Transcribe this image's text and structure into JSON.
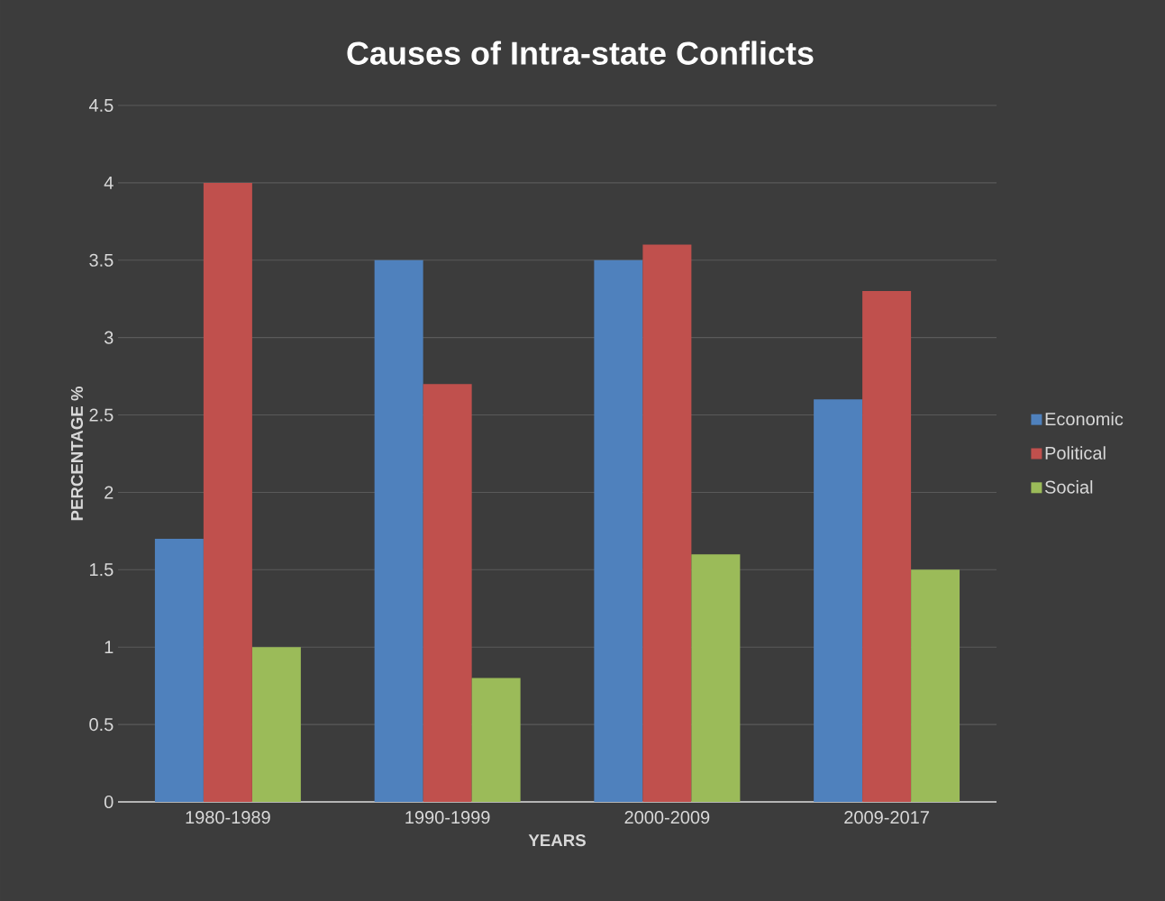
{
  "chart_data": {
    "type": "bar",
    "title": "Causes of Intra-state Conflicts",
    "xlabel": "YEARS",
    "ylabel": "PERCENTAGE %",
    "categories": [
      "1980-1989",
      "1990-1999",
      "2000-2009",
      "2009-2017"
    ],
    "series": [
      {
        "name": "Economic",
        "color": "#4f81bd",
        "values": [
          1.7,
          3.5,
          3.5,
          2.6
        ]
      },
      {
        "name": "Political",
        "color": "#c0504d",
        "values": [
          4,
          2.7,
          3.6,
          3.3
        ]
      },
      {
        "name": "Social",
        "color": "#9bbb59",
        "values": [
          1,
          0.8,
          1.6,
          1.5
        ]
      }
    ],
    "ylim": [
      0,
      4.5
    ],
    "yticks": [
      0,
      0.5,
      1,
      1.5,
      2,
      2.5,
      3,
      3.5,
      4,
      4.5
    ],
    "grid": "y",
    "legend": "right"
  }
}
